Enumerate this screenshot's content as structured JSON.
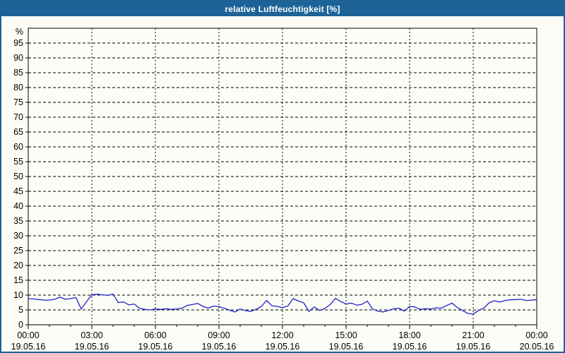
{
  "window": {
    "title": "relative Luftfeuchtigkeit [%]"
  },
  "colors": {
    "titlebar_bg": "#1D6397",
    "titlebar_text": "#FFFFFF",
    "window_border": "#1D6397",
    "background": "#FCFDF6",
    "axis": "#000000",
    "grid": "#000000",
    "tick_text": "#000000",
    "line": "#2222CC"
  },
  "chart_data": {
    "type": "line",
    "title": "relative Luftfeuchtigkeit [%]",
    "xlabel": "",
    "ylabel": "%",
    "ylim": [
      0,
      100
    ],
    "y_tick_step": 5,
    "y_ticks": [
      0,
      5,
      10,
      15,
      20,
      25,
      30,
      35,
      40,
      45,
      50,
      55,
      60,
      65,
      70,
      75,
      80,
      85,
      90,
      95
    ],
    "grid": "dashed",
    "legend_position": "none",
    "x_axis": {
      "hours_range": [
        0,
        24
      ],
      "minor_tick_hours": 1,
      "major_tick_hours": 3,
      "label_hours": [
        0,
        3,
        6,
        9,
        12,
        15,
        18,
        21,
        24
      ],
      "labels": [
        {
          "time": "00:00",
          "date": "19.05.16"
        },
        {
          "time": "03:00",
          "date": "19.05.16"
        },
        {
          "time": "06:00",
          "date": "19.05.16"
        },
        {
          "time": "09:00",
          "date": "19.05.16"
        },
        {
          "time": "12:00",
          "date": "19.05.16"
        },
        {
          "time": "15:00",
          "date": "19.05.16"
        },
        {
          "time": "18:00",
          "date": "19.05.16"
        },
        {
          "time": "21:00",
          "date": "19.05.16"
        },
        {
          "time": "00:00",
          "date": "20.05.16"
        }
      ]
    },
    "series": [
      {
        "name": "relative Luftfeuchtigkeit",
        "color": "#2222CC",
        "x_start_hour": 0,
        "x_step_hours": 0.25,
        "values": [
          8.8,
          8.7,
          8.5,
          8.3,
          8.3,
          8.6,
          9.3,
          8.6,
          8.8,
          9.2,
          5.3,
          7.8,
          10.1,
          10.3,
          10.1,
          9.9,
          10.3,
          7.5,
          7.7,
          6.7,
          7.0,
          5.6,
          5.2,
          5.0,
          5.3,
          5.2,
          5.4,
          5.2,
          5.3,
          5.6,
          6.5,
          6.8,
          7.2,
          6.2,
          5.6,
          6.3,
          6.1,
          5.6,
          4.9,
          4.3,
          5.3,
          4.8,
          4.5,
          5.2,
          6.2,
          8.2,
          6.4,
          6.2,
          5.8,
          6.3,
          8.8,
          8.0,
          7.4,
          4.5,
          6.0,
          4.8,
          5.5,
          6.8,
          8.9,
          7.8,
          7.0,
          7.3,
          6.6,
          6.9,
          8.0,
          5.3,
          4.6,
          4.3,
          4.8,
          5.4,
          5.6,
          4.6,
          6.2,
          6.0,
          5.2,
          5.4,
          5.3,
          5.7,
          5.6,
          6.5,
          7.3,
          5.8,
          4.8,
          3.8,
          3.6,
          4.8,
          5.6,
          7.4,
          8.1,
          7.7,
          8.2,
          8.4,
          8.5,
          8.6,
          8.2,
          8.3,
          8.5
        ]
      }
    ]
  }
}
